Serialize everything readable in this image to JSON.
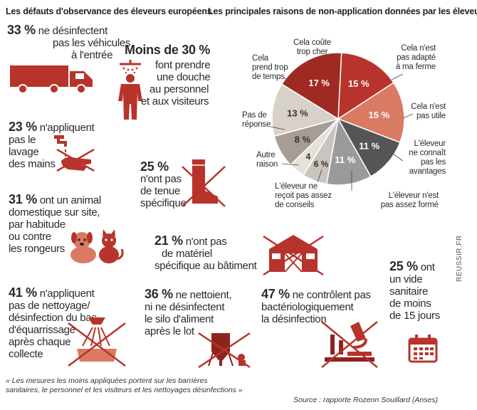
{
  "headings": {
    "left": "Les défauts d'observance des éleveurs européens",
    "right": "Les principales raisons de non-application données par les éleveurs"
  },
  "stats": {
    "vehicles": {
      "pct": "33 %",
      "line1": "ne désinfectent",
      "line2": "pas les véhicules",
      "line3": "à l'entrée"
    },
    "shower": {
      "pct": "Moins de 30 %",
      "line1": "font prendre",
      "line2": "une douche",
      "line3": "au personnel",
      "line4": "et aux visiteurs"
    },
    "hands": {
      "pct": "23 %",
      "line1": "n'appliquent",
      "line2": "pas le",
      "line3": "lavage",
      "line4": "des mains"
    },
    "boots": {
      "pct": "25 %",
      "line1": "n'ont pas",
      "line2": "de tenue",
      "line3": "spécifique"
    },
    "pets": {
      "pct": "31 %",
      "line1": "ont un animal",
      "line2": "domestique sur site,",
      "line3": "par habitude",
      "line4": "ou contre",
      "line5": "les rongeurs"
    },
    "material": {
      "pct": "21 %",
      "line1": "n'ont pas",
      "line2": "de matériel",
      "line3": "spécifique au bâtiment"
    },
    "tank": {
      "pct": "41 %",
      "line1": "n'appliquent",
      "line2": "pas de nettoyage/",
      "line3": "désinfection du bac",
      "line4": "d'équarrissage",
      "line5": "après chaque",
      "line6": "collecte"
    },
    "silo": {
      "pct": "36 %",
      "line1": "ne nettoient,",
      "line2": "ni ne désinfectent",
      "line3": "le silo d'aliment",
      "line4": "après le lot"
    },
    "bacterio": {
      "pct": "47 %",
      "line1": "ne contrôlent pas",
      "line2": "bactériologiquement",
      "line3": "la désinfection"
    },
    "empty": {
      "pct": "25 %",
      "line1": "ont",
      "line2": "un vide",
      "line3": "sanitaire",
      "line4": "de moins",
      "line5": "de 15 jours"
    }
  },
  "quote": {
    "line1": "« Les mesures les moins appliquées portent sur les barrières",
    "line2": "sanitaires, le personnel et les visiteurs et les nettoyages désinfections »"
  },
  "source": "Source : rapporte Rozenn Souillard (Anses)",
  "side_label": "REUSSIR.FR",
  "pie": {
    "slices": [
      {
        "label_pct": "15 %",
        "value": 15,
        "color": "#b8332b",
        "legend": [
          "Cela coûte",
          "trop cher"
        ]
      },
      {
        "label_pct": "15 %",
        "value": 15,
        "color": "#d97a62",
        "legend": [
          "Cela n'est",
          "pas adapté",
          "à ma ferme"
        ]
      },
      {
        "label_pct": "11 %",
        "value": 11,
        "color": "#555555",
        "legend": [
          "Cela n'est",
          "pas utile"
        ]
      },
      {
        "label_pct": "11 %",
        "value": 11,
        "color": "#9a9a9a",
        "legend": [
          "L'éleveur",
          "ne connaît",
          "pas les",
          "avantages"
        ]
      },
      {
        "label_pct": "6 %",
        "value": 6,
        "color": "#cbc3bd",
        "legend": [
          "L'éleveur n'est",
          "pas assez formé"
        ]
      },
      {
        "label_pct": "4",
        "value": 4,
        "color": "#e7e1db",
        "legend": [
          "L'éleveur ne",
          "reçoit pas assez",
          "de conseils"
        ]
      },
      {
        "label_pct": "8 %",
        "value": 8,
        "color": "#a79d95",
        "legend": [
          "Autre",
          "raison"
        ]
      },
      {
        "label_pct": "13 %",
        "value": 13,
        "color": "#d8d1ca",
        "legend": [
          "Pas de",
          "réponse"
        ]
      },
      {
        "label_pct": "17 %",
        "value": 17,
        "color": "#9f2a22",
        "legend": [
          "Cela",
          "prend trop",
          "de temps"
        ]
      }
    ]
  },
  "colors": {
    "accent": "#b8332b",
    "accent_dark": "#8e231d",
    "text": "#2a2a2a"
  },
  "icons": [
    "truck-icon",
    "shower-person-icon",
    "hand-wash-crossed-icon",
    "boot-crossed-icon",
    "dog-cat-icon",
    "barn-crossed-icon",
    "shower-crossed-icon",
    "silo-crossed-icon",
    "microscope-crossed-icon",
    "calendar-icon"
  ]
}
